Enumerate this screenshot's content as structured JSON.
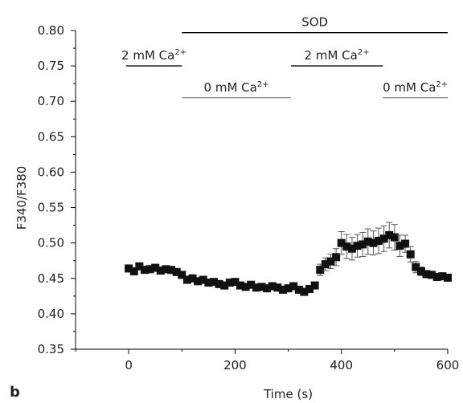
{
  "panel_letter": "b",
  "chart_data": {
    "type": "line",
    "xlabel": "Time (s)",
    "ylabel": "F340/F380",
    "xlim": [
      -100,
      600
    ],
    "ylim": [
      0.35,
      0.8
    ],
    "x_ticks": [
      0,
      200,
      400,
      600
    ],
    "y_ticks": [
      0.35,
      0.4,
      0.45,
      0.5,
      0.55,
      0.6,
      0.65,
      0.7,
      0.75,
      0.8
    ],
    "grid": false,
    "annotations": [
      {
        "text": "SOD",
        "x_start": 100,
        "x_end": 600,
        "y": 0.797,
        "style": "thick"
      },
      {
        "text": "2 mM Ca",
        "sup": "2+",
        "x_start": -5,
        "x_end": 100,
        "y": 0.75,
        "style": "thick"
      },
      {
        "text": "0 mM Ca",
        "sup": "2+",
        "x_start": 100,
        "x_end": 305,
        "y": 0.705,
        "style": "thin"
      },
      {
        "text": "2 mM Ca",
        "sup": "2+",
        "x_start": 305,
        "x_end": 478,
        "y": 0.75,
        "style": "thick"
      },
      {
        "text": "0 mM Ca",
        "sup": "2+",
        "x_start": 478,
        "x_end": 600,
        "y": 0.705,
        "style": "thin"
      }
    ],
    "series": [
      {
        "x": [
          0,
          10,
          20,
          30,
          40,
          50,
          60,
          70,
          80,
          90,
          100,
          110,
          120,
          130,
          140,
          150,
          160,
          170,
          180,
          190,
          200,
          210,
          220,
          230,
          240,
          250,
          260,
          270,
          280,
          290,
          300,
          310,
          320,
          330,
          340,
          350,
          360,
          370,
          380,
          390,
          400,
          410,
          420,
          430,
          440,
          450,
          460,
          470,
          480,
          490,
          500,
          510,
          520,
          530,
          540,
          550,
          560,
          570,
          580,
          590,
          600
        ],
        "y": [
          0.464,
          0.46,
          0.467,
          0.462,
          0.463,
          0.465,
          0.461,
          0.463,
          0.462,
          0.459,
          0.455,
          0.448,
          0.45,
          0.446,
          0.448,
          0.444,
          0.445,
          0.442,
          0.44,
          0.444,
          0.445,
          0.44,
          0.438,
          0.441,
          0.437,
          0.438,
          0.436,
          0.439,
          0.437,
          0.434,
          0.436,
          0.439,
          0.434,
          0.431,
          0.435,
          0.44,
          0.462,
          0.47,
          0.474,
          0.48,
          0.5,
          0.495,
          0.492,
          0.496,
          0.498,
          0.502,
          0.5,
          0.503,
          0.506,
          0.511,
          0.508,
          0.496,
          0.499,
          0.484,
          0.466,
          0.46,
          0.456,
          0.455,
          0.452,
          0.453,
          0.451
        ],
        "error": [
          0.004,
          0.004,
          0.004,
          0.004,
          0.004,
          0.004,
          0.004,
          0.004,
          0.004,
          0.004,
          0.004,
          0.004,
          0.004,
          0.004,
          0.004,
          0.004,
          0.004,
          0.004,
          0.004,
          0.004,
          0.004,
          0.004,
          0.004,
          0.004,
          0.004,
          0.004,
          0.004,
          0.004,
          0.004,
          0.004,
          0.004,
          0.004,
          0.004,
          0.004,
          0.004,
          0.005,
          0.008,
          0.009,
          0.01,
          0.012,
          0.016,
          0.017,
          0.016,
          0.016,
          0.017,
          0.018,
          0.017,
          0.018,
          0.018,
          0.018,
          0.018,
          0.015,
          0.012,
          0.011,
          0.008,
          0.006,
          0.005,
          0.004,
          0.004,
          0.004,
          0.004
        ]
      }
    ]
  }
}
